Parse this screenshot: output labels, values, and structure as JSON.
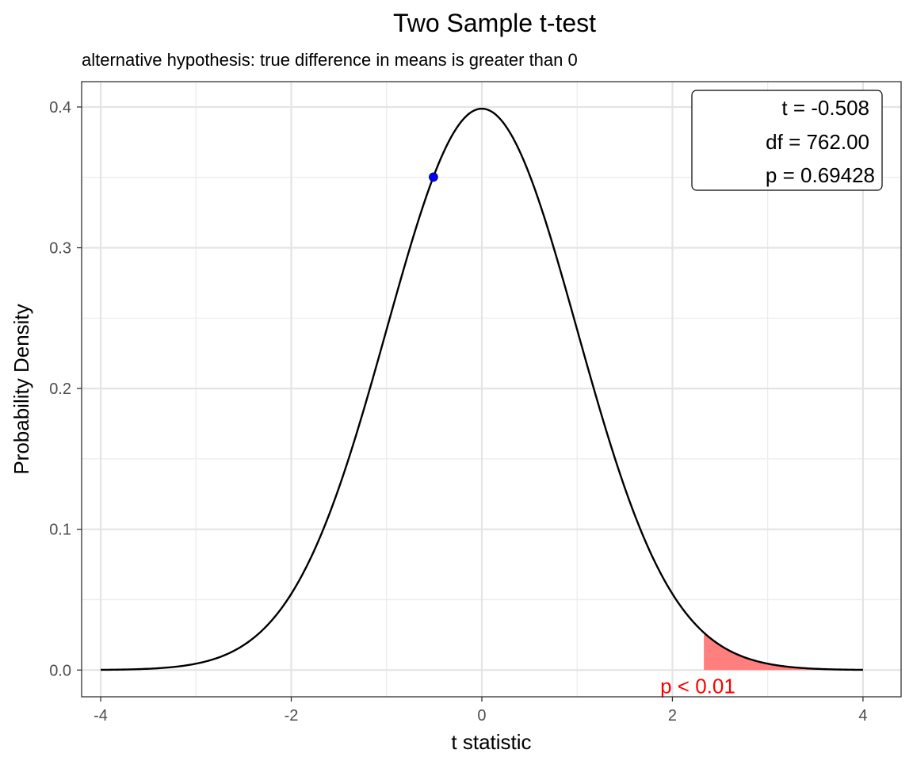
{
  "chart_data": {
    "type": "line",
    "title": "Two Sample t-test",
    "subtitle": "alternative hypothesis: true difference in means is greater than 0",
    "xlabel": "t statistic",
    "ylabel": "Probability Density",
    "xlim": [
      -4.2,
      4.4
    ],
    "ylim": [
      -0.019,
      0.418
    ],
    "x_ticks": [
      -4,
      -2,
      0,
      2,
      4
    ],
    "x_tick_labels": [
      "-4",
      "-2",
      "0",
      "2",
      "4"
    ],
    "y_ticks": [
      0.0,
      0.1,
      0.2,
      0.3,
      0.4
    ],
    "y_tick_labels": [
      "0.0",
      "0.1",
      "0.2",
      "0.3",
      "0.4"
    ],
    "grid": true,
    "curve": {
      "distribution": "t",
      "df": 762,
      "x_range": [
        -4,
        4
      ],
      "color": "#000000"
    },
    "point": {
      "x": -0.508,
      "y": 0.3502,
      "color": "#0000ff"
    },
    "shaded_region": {
      "x_from": 2.33,
      "x_to": 4,
      "color": "#ff7f7f"
    },
    "annotation": {
      "text": "p < 0.01",
      "x": 2.33,
      "y": -0.012,
      "color": "#ff0000"
    },
    "stats_box": {
      "lines": [
        "t = -0.508",
        "df = 762.00",
        "p = 0.69428"
      ],
      "position": "top-right"
    }
  }
}
